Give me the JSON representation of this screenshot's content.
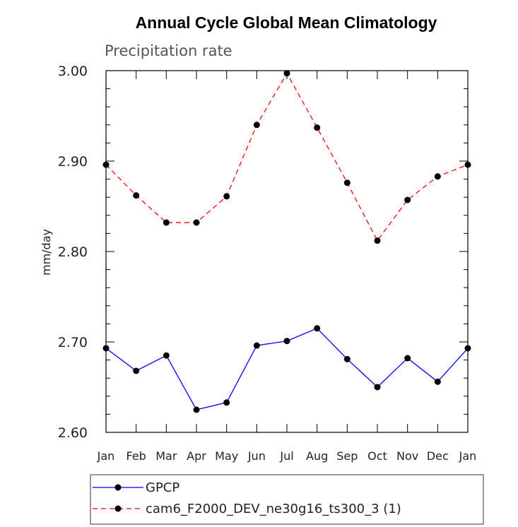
{
  "chart_data": {
    "type": "line",
    "title": "Annual Cycle Global Mean Climatology",
    "subtitle": "Precipitation rate",
    "xlabel": "",
    "ylabel": "mm/day",
    "categories": [
      "Jan",
      "Feb",
      "Mar",
      "Apr",
      "May",
      "Jun",
      "Jul",
      "Aug",
      "Sep",
      "Oct",
      "Nov",
      "Dec",
      "Jan"
    ],
    "ylim": [
      2.6,
      3.0
    ],
    "y_ticks": [
      "2.60",
      "2.70",
      "2.80",
      "2.90",
      "3.00"
    ],
    "y_tick_values": [
      2.6,
      2.7,
      2.8,
      2.9,
      3.0
    ],
    "grid": false,
    "legend_position": "bottom",
    "series": [
      {
        "name": "GPCP",
        "color": "#0000ff",
        "line_style": "solid",
        "marker": "filled-circle",
        "values": [
          2.693,
          2.668,
          2.685,
          2.625,
          2.633,
          2.696,
          2.701,
          2.715,
          2.681,
          2.65,
          2.682,
          2.656,
          2.693
        ]
      },
      {
        "name": "cam6_F2000_DEV_ne30g16_ts300_3 (1)",
        "color": "#ff0000",
        "line_style": "dashed",
        "marker": "filled-circle",
        "values": [
          2.896,
          2.862,
          2.832,
          2.832,
          2.861,
          2.94,
          2.997,
          2.937,
          2.876,
          2.812,
          2.857,
          2.883,
          2.896
        ]
      }
    ]
  }
}
